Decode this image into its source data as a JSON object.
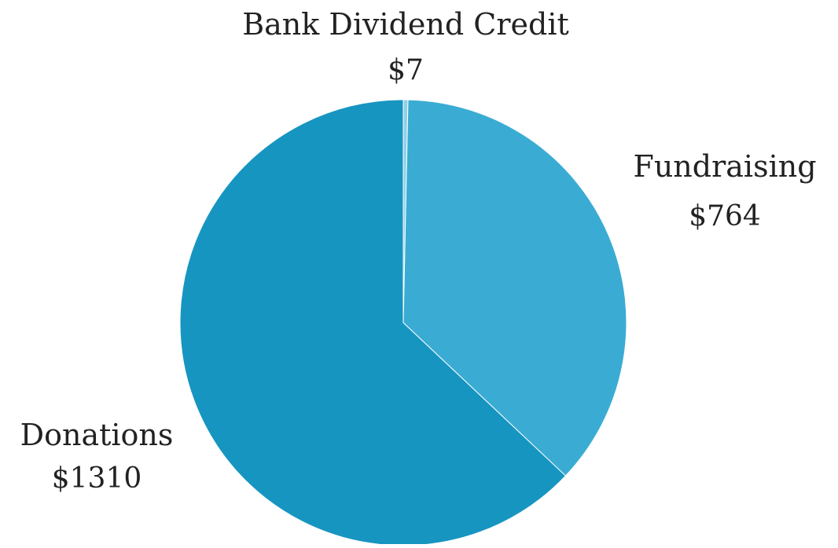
{
  "chart_data": {
    "type": "pie",
    "title": "",
    "slices": [
      {
        "label": "Bank Dividend Credit",
        "value_label": "$7",
        "value": 7,
        "color": "#8FD1E6"
      },
      {
        "label": "Fundraising",
        "value_label": "$764",
        "value": 764,
        "color": "#3AACD4"
      },
      {
        "label": "Donations",
        "value_label": "$1310",
        "value": 1310,
        "color": "#1795C1"
      }
    ],
    "start_angle_deg": 0,
    "direction": "clockwise",
    "labels_position": "outside"
  }
}
